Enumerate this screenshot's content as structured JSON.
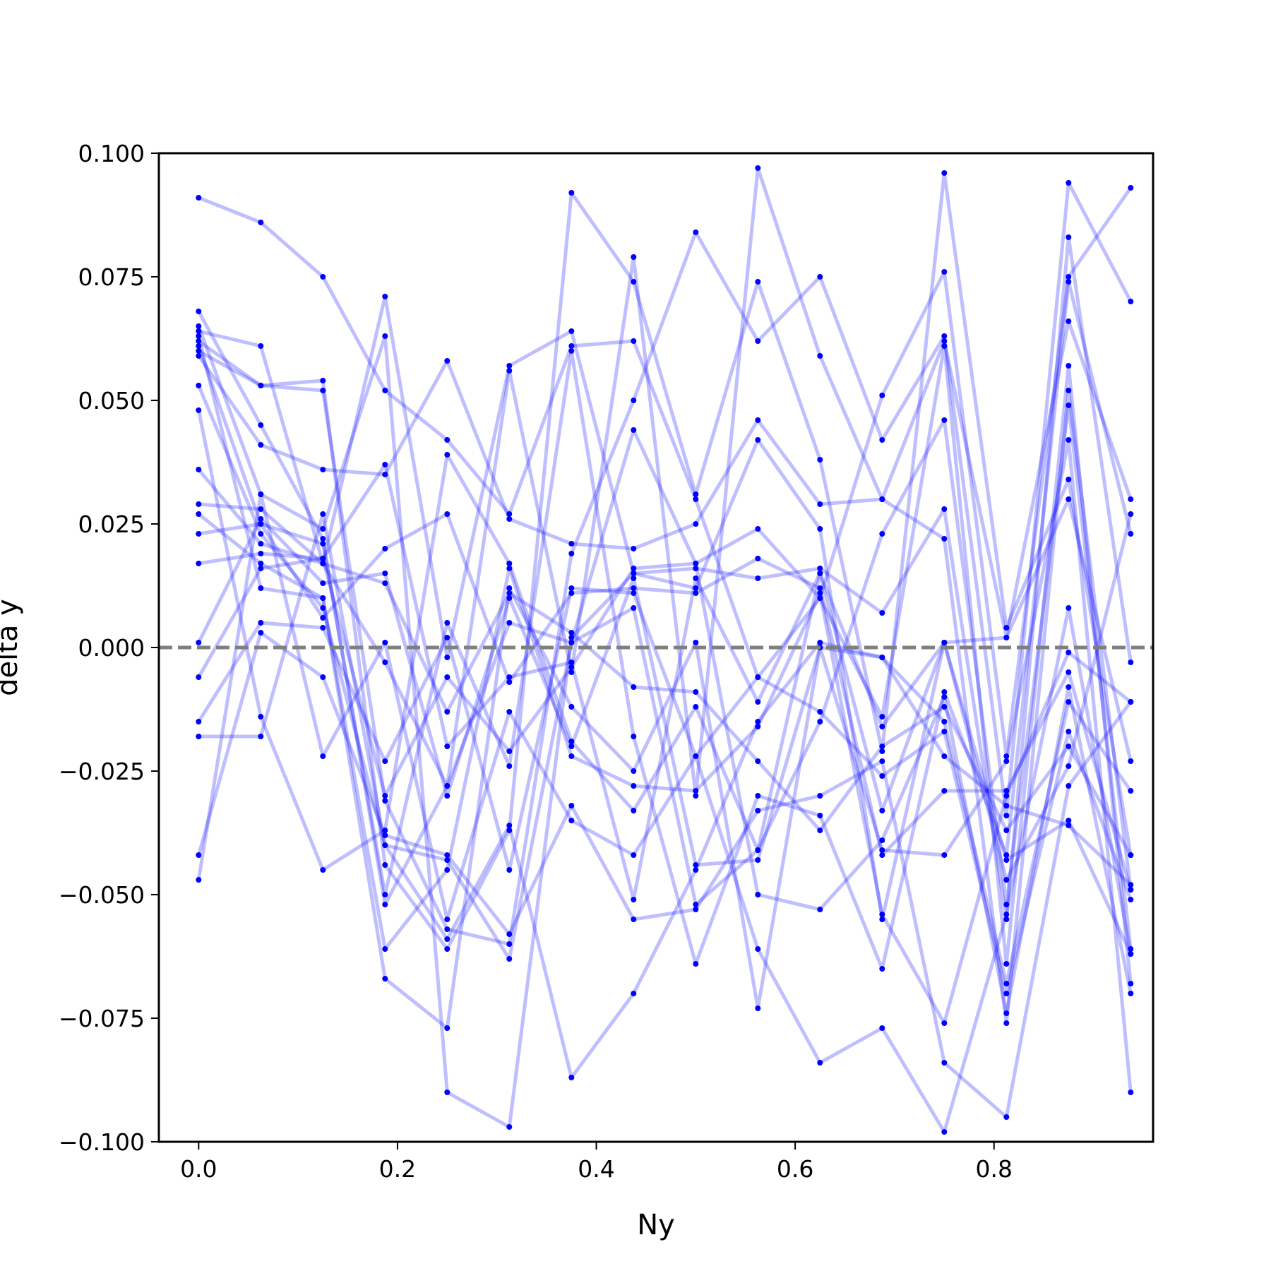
{
  "chart_data": {
    "type": "line",
    "xlabel": "Ny",
    "ylabel": "delta y",
    "xlim": [
      -0.04,
      0.96
    ],
    "ylim": [
      -0.1,
      0.1
    ],
    "x_ticks": [
      "0.0",
      "0.2",
      "0.4",
      "0.6",
      "0.8"
    ],
    "y_ticks": [
      "0.100",
      "0.075",
      "0.050",
      "0.025",
      "0.000",
      "−0.025",
      "−0.050",
      "−0.075",
      "−0.100"
    ],
    "reference_line": {
      "y": 0.0,
      "style": "dashed",
      "color": "#7f7f7f"
    },
    "series_color": "#0000ff",
    "line_alpha": 0.25,
    "grid": false,
    "legend": "none",
    "x": [
      0.0,
      0.0625,
      0.125,
      0.1875,
      0.25,
      0.3125,
      0.375,
      0.4375,
      0.5,
      0.5625,
      0.625,
      0.6875,
      0.75,
      0.8125,
      0.875,
      0.9375
    ],
    "series": [
      {
        "values": [
          0.091,
          0.086,
          0.075,
          0.052,
          0.042,
          0.027,
          0.061,
          0.062,
          0.03,
          -0.006,
          0.01,
          0.051,
          0.076,
          -0.022,
          0.075,
          0.093
        ]
      },
      {
        "values": [
          0.062,
          0.053,
          0.052,
          -0.031,
          -0.057,
          -0.06,
          0.019,
          0.05,
          0.084,
          0.062,
          0.075,
          0.042,
          0.063,
          -0.034,
          0.094,
          0.07
        ]
      },
      {
        "values": [
          0.068,
          0.045,
          0.022,
          -0.052,
          -0.028,
          0.056,
          -0.005,
          0.079,
          -0.03,
          0.097,
          0.059,
          0.03,
          0.062,
          0.002,
          0.066,
          0.03
        ]
      },
      {
        "values": [
          0.064,
          0.061,
          0.017,
          0.071,
          -0.002,
          0.057,
          0.064,
          0.015,
          0.016,
          0.014,
          0.016,
          0.007,
          0.028,
          -0.055,
          0.083,
          -0.003
        ]
      },
      {
        "values": [
          0.06,
          0.053,
          0.054,
          -0.044,
          -0.061,
          -0.037,
          0.092,
          0.074,
          0.031,
          0.074,
          0.038,
          -0.021,
          0.096,
          0.004,
          0.034,
          -0.042
        ]
      },
      {
        "values": [
          0.059,
          0.041,
          0.036,
          0.035,
          0.058,
          0.026,
          0.021,
          0.02,
          0.025,
          0.046,
          0.029,
          0.03,
          0.022,
          -0.076,
          0.052,
          -0.049
        ]
      },
      {
        "values": [
          0.065,
          0.031,
          0.024,
          0.063,
          -0.09,
          -0.097,
          0.002,
          0.015,
          0.012,
          0.042,
          0.024,
          -0.055,
          0.001,
          0.002,
          0.03,
          -0.023
        ]
      },
      {
        "values": [
          0.053,
          0.023,
          0.008,
          -0.04,
          -0.043,
          -0.063,
          0.001,
          0.044,
          0.017,
          0.024,
          0.01,
          -0.014,
          0.061,
          -0.064,
          0.057,
          -0.068
        ]
      },
      {
        "values": [
          0.048,
          -0.014,
          -0.045,
          -0.037,
          0.039,
          0.017,
          -0.019,
          -0.033,
          -0.012,
          -0.041,
          -0.015,
          0.023,
          0.046,
          -0.052,
          0.049,
          -0.061
        ]
      },
      {
        "values": [
          0.061,
          0.025,
          0.021,
          -0.05,
          0.005,
          -0.024,
          0.06,
          -0.018,
          -0.064,
          -0.03,
          -0.034,
          -0.065,
          -0.009,
          -0.042,
          0.074,
          0.023
        ]
      },
      {
        "values": [
          0.063,
          0.012,
          0.01,
          -0.067,
          -0.077,
          0.012,
          -0.012,
          -0.025,
          0.001,
          -0.073,
          0.0,
          -0.041,
          -0.042,
          -0.023,
          0.042,
          -0.09
        ]
      },
      {
        "values": [
          0.029,
          0.028,
          0.017,
          -0.003,
          -0.028,
          0.005,
          0.001,
          0.008,
          -0.052,
          -0.041,
          0.015,
          -0.033,
          0.001,
          -0.043,
          -0.035,
          -0.062
        ]
      },
      {
        "values": [
          0.027,
          0.017,
          0.01,
          -0.061,
          -0.045,
          0.016,
          -0.022,
          -0.028,
          -0.029,
          -0.016,
          0.011,
          -0.054,
          -0.076,
          -0.03,
          -0.001,
          -0.011
        ]
      },
      {
        "values": [
          0.023,
          0.025,
          0.006,
          0.02,
          0.027,
          -0.007,
          0.011,
          0.012,
          0.011,
          0.018,
          0.012,
          -0.042,
          -0.029,
          -0.029,
          -0.005,
          -0.049
        ]
      },
      {
        "values": [
          0.036,
          0.021,
          0.017,
          0.013,
          -0.013,
          0.011,
          0.003,
          -0.008,
          -0.009,
          -0.023,
          -0.037,
          -0.02,
          -0.012,
          -0.037,
          -0.02,
          -0.042
        ]
      },
      {
        "values": [
          0.017,
          0.019,
          0.018,
          0.037,
          -0.02,
          -0.006,
          -0.003,
          -0.051,
          0.014,
          -0.011,
          0.015,
          -0.016,
          0.001,
          -0.047,
          -0.024,
          0.027
        ]
      },
      {
        "values": [
          0.001,
          0.026,
          0.013,
          0.015,
          -0.03,
          0.01,
          -0.02,
          0.014,
          -0.044,
          -0.043,
          0.0,
          -0.002,
          -0.015,
          -0.068,
          -0.011,
          -0.029
        ]
      },
      {
        "values": [
          -0.006,
          0.016,
          0.018,
          -0.03,
          -0.006,
          -0.021,
          -0.004,
          0.016,
          0.017,
          -0.05,
          -0.053,
          -0.039,
          -0.01,
          -0.074,
          -0.008,
          -0.07
        ]
      },
      {
        "values": [
          -0.015,
          0.005,
          0.004,
          -0.023,
          0.002,
          -0.045,
          0.012,
          0.011,
          -0.022,
          -0.006,
          -0.013,
          -0.026,
          -0.017,
          -0.07,
          -0.017,
          -0.051
        ]
      },
      {
        "values": [
          -0.018,
          -0.018,
          0.027,
          -0.04,
          -0.059,
          -0.036,
          -0.087,
          -0.07,
          -0.045,
          -0.015,
          0.001,
          -0.002,
          -0.022,
          -0.032,
          -0.036,
          -0.048
        ]
      },
      {
        "values": [
          -0.042,
          0.003,
          -0.006,
          -0.038,
          -0.042,
          -0.058,
          -0.032,
          -0.055,
          -0.053,
          -0.033,
          -0.03,
          -0.023,
          -0.084,
          -0.095,
          -0.028,
          -0.011
        ]
      },
      {
        "values": [
          -0.047,
          0.031,
          -0.022,
          0.001,
          -0.055,
          -0.013,
          -0.035,
          -0.042,
          -0.022,
          -0.061,
          -0.084,
          -0.077,
          -0.098,
          -0.054,
          0.008,
          -0.062
        ]
      }
    ]
  }
}
